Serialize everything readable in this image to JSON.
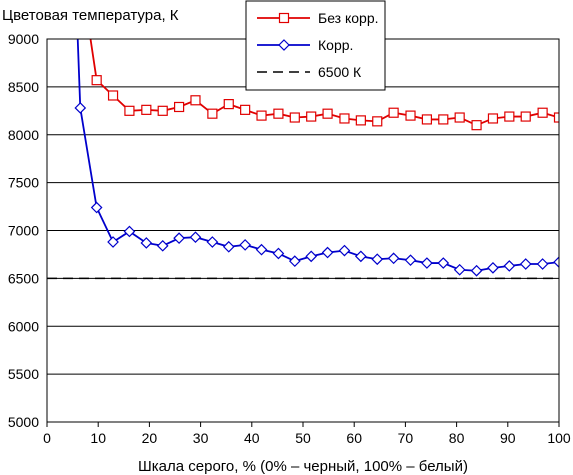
{
  "chart_data": {
    "type": "line",
    "title": "Цветовая температура, К",
    "xlabel": "Шкала серого, % (0% – черный, 100% – белый)",
    "ylabel": "",
    "xlim": [
      0,
      100
    ],
    "ylim": [
      5000,
      9000
    ],
    "x_ticks": [
      "0",
      "10",
      "20",
      "30",
      "40",
      "50",
      "60",
      "70",
      "80",
      "90",
      "100"
    ],
    "y_ticks": [
      "5000",
      "5500",
      "6000",
      "6500",
      "7000",
      "7500",
      "8000",
      "8500",
      "9000"
    ],
    "grid": "horizontal",
    "legend_position": "top-center",
    "series": [
      {
        "name": "Без корр.",
        "color": "#e00000",
        "marker": "square",
        "x": [
          8.5,
          9.7,
          12.9,
          16.1,
          19.4,
          22.6,
          25.8,
          29.0,
          32.3,
          35.5,
          38.7,
          41.9,
          45.2,
          48.4,
          51.6,
          54.8,
          58.1,
          61.3,
          64.5,
          67.7,
          71.0,
          74.2,
          77.4,
          80.6,
          83.9,
          87.1,
          90.3,
          93.5,
          96.8,
          100.0
        ],
        "y": [
          9000,
          8570,
          8410,
          8250,
          8260,
          8250,
          8290,
          8360,
          8220,
          8320,
          8260,
          8200,
          8220,
          8180,
          8190,
          8220,
          8170,
          8150,
          8140,
          8230,
          8200,
          8160,
          8160,
          8180,
          8100,
          8170,
          8190,
          8190,
          8230,
          8180
        ]
      },
      {
        "name": "Корр.",
        "color": "#0000cc",
        "marker": "diamond",
        "x": [
          6.0,
          6.5,
          9.7,
          12.9,
          16.1,
          19.4,
          22.6,
          25.8,
          29.0,
          32.3,
          35.5,
          38.7,
          41.9,
          45.2,
          48.4,
          51.6,
          54.8,
          58.1,
          61.3,
          64.5,
          67.7,
          71.0,
          74.2,
          77.4,
          80.6,
          83.9,
          87.1,
          90.3,
          93.5,
          96.8,
          100.0
        ],
        "y": [
          9000,
          8280,
          7240,
          6880,
          6990,
          6870,
          6840,
          6920,
          6930,
          6880,
          6830,
          6850,
          6800,
          6760,
          6680,
          6730,
          6770,
          6790,
          6730,
          6700,
          6710,
          6690,
          6660,
          6660,
          6590,
          6580,
          6610,
          6630,
          6650,
          6650,
          6670
        ]
      },
      {
        "name": "6500 К",
        "color": "#000000",
        "dash": true,
        "x": [
          0,
          100
        ],
        "y": [
          6500,
          6500
        ]
      }
    ]
  }
}
